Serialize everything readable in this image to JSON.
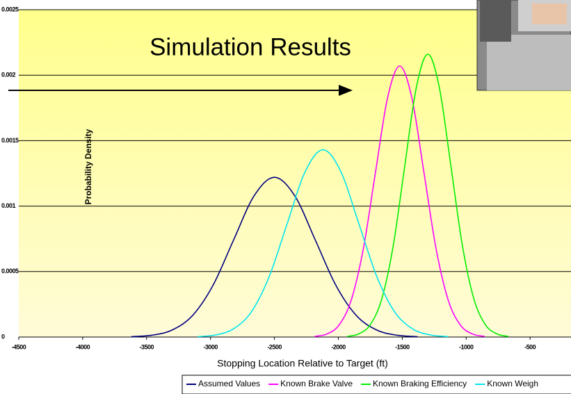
{
  "chart_data": {
    "type": "line",
    "title": "Simulation Results",
    "x_label": "Stopping Location Relative to Target (ft)",
    "y_label": "Probability Density",
    "xlim": [
      -4500,
      -180
    ],
    "ylim": [
      0,
      0.0025
    ],
    "xticks": [
      -4500,
      -4000,
      -3500,
      -3000,
      -2500,
      -2000,
      -1500,
      -1000,
      -500
    ],
    "yticks": [
      0,
      0.0005,
      0.001,
      0.0015,
      0.002,
      0.0025
    ],
    "grid": true,
    "legend": "bottom",
    "series": [
      {
        "name": "Assumed Values",
        "color": "#000080",
        "x": [
          -3620,
          -3460,
          -3300,
          -3140,
          -2980,
          -2820,
          -2660,
          -2500,
          -2340,
          -2180,
          -2020,
          -1860,
          -1700,
          -1540,
          -1380
        ],
        "values": [
          3e-06,
          1.35e-05,
          5.36e-05,
          0.000165,
          0.000396,
          0.00074,
          0.001077,
          0.00122,
          0.001077,
          0.00074,
          0.000396,
          0.000165,
          5.36e-05,
          1.35e-05,
          3e-06
        ]
      },
      {
        "name": "Known Brake Valve",
        "color": "#ff00ff",
        "x": [
          -2185,
          -2090,
          -1995,
          -1900,
          -1805,
          -1710,
          -1615,
          -1520,
          -1425,
          -1330,
          -1235,
          -1140,
          -1045,
          -950,
          -855
        ],
        "values": [
          4.6e-06,
          2.3e-05,
          9.09e-05,
          0.00028,
          0.000672,
          0.001255,
          0.001827,
          0.00207,
          0.001827,
          0.001255,
          0.000672,
          0.00028,
          9.09e-05,
          2.3e-05,
          4.6e-06
        ]
      },
      {
        "name": "Known Braking Efficiency",
        "color": "#00ee00",
        "x": [
          -1930,
          -1840,
          -1750,
          -1660,
          -1570,
          -1480,
          -1390,
          -1300,
          -1210,
          -1120,
          -1030,
          -940,
          -850,
          -760,
          -670
        ],
        "values": [
          4.8e-06,
          2.4e-05,
          9.48e-05,
          0.000292,
          0.000701,
          0.00131,
          0.001906,
          0.00216,
          0.001906,
          0.00131,
          0.000701,
          0.000292,
          9.48e-05,
          2.4e-05,
          4.8e-06
        ]
      },
      {
        "name": "Known Weigh",
        "color": "#00e5ee",
        "x": [
          -3100,
          -2960,
          -2820,
          -2680,
          -2540,
          -2400,
          -2260,
          -2120,
          -1980,
          -1840,
          -1700,
          -1560,
          -1420,
          -1280,
          -1140
        ],
        "values": [
          3.1e-06,
          1.59e-05,
          6.28e-05,
          0.000193,
          0.000464,
          0.000867,
          0.001262,
          0.00143,
          0.001262,
          0.000867,
          0.000464,
          0.000193,
          6.28e-05,
          1.59e-05,
          3.1e-06
        ]
      }
    ]
  }
}
